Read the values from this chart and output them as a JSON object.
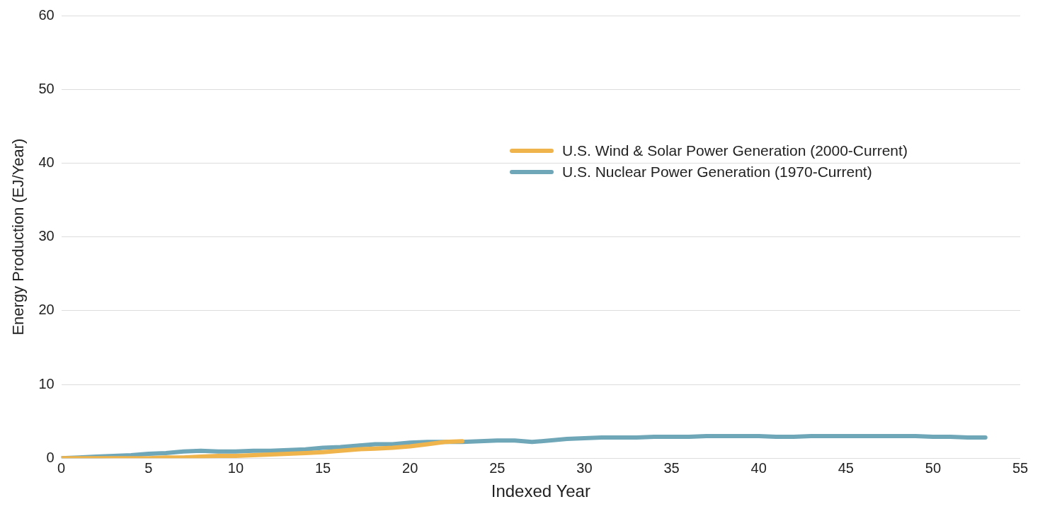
{
  "chart_data": {
    "type": "line",
    "xlabel": "Indexed Year",
    "ylabel": "Energy Production (EJ/Year)",
    "xlim": [
      0,
      55
    ],
    "xticks": [
      0,
      5,
      10,
      15,
      20,
      25,
      30,
      35,
      40,
      45,
      50,
      55
    ],
    "ylim": [
      0,
      60
    ],
    "yticks": [
      0,
      10,
      20,
      30,
      40,
      50,
      60
    ],
    "grid": "y",
    "legend": "right",
    "marker": "none",
    "line_style": "solid",
    "series": [
      {
        "name": "U.S. Wind & Solar Power Generation (2000-Current)",
        "color": "#f0b44c",
        "x": [
          0,
          1,
          2,
          3,
          4,
          5,
          6,
          7,
          8,
          9,
          10,
          11,
          12,
          13,
          14,
          15,
          16,
          17,
          18,
          19,
          20,
          21,
          22,
          23
        ],
        "values": [
          0,
          0,
          0,
          0,
          0,
          0,
          0.1,
          0.1,
          0.2,
          0.3,
          0.3,
          0.4,
          0.5,
          0.6,
          0.7,
          0.8,
          1.0,
          1.2,
          1.3,
          1.4,
          1.6,
          1.9,
          2.2,
          2.3
        ]
      },
      {
        "name": "U.S. Nuclear Power Generation (1970-Current)",
        "color": "#6fa7b8",
        "x": [
          0,
          1,
          2,
          3,
          4,
          5,
          6,
          7,
          8,
          9,
          10,
          11,
          12,
          13,
          14,
          15,
          16,
          17,
          18,
          19,
          20,
          21,
          22,
          23,
          24,
          25,
          26,
          27,
          28,
          29,
          30,
          31,
          32,
          33,
          34,
          35,
          36,
          37,
          38,
          39,
          40,
          41,
          42,
          43,
          44,
          45,
          46,
          47,
          48,
          49,
          50,
          51,
          52,
          53
        ],
        "values": [
          0,
          0.1,
          0.2,
          0.3,
          0.4,
          0.6,
          0.7,
          0.9,
          1.0,
          0.9,
          0.9,
          1.0,
          1.0,
          1.1,
          1.2,
          1.4,
          1.5,
          1.7,
          1.9,
          1.9,
          2.1,
          2.2,
          2.2,
          2.2,
          2.3,
          2.4,
          2.4,
          2.2,
          2.4,
          2.6,
          2.7,
          2.8,
          2.8,
          2.8,
          2.9,
          2.9,
          2.9,
          3.0,
          3.0,
          3.0,
          3.0,
          2.9,
          2.9,
          3.0,
          3.0,
          3.0,
          3.0,
          3.0,
          3.0,
          3.0,
          2.9,
          2.9,
          2.8,
          2.8
        ]
      }
    ]
  }
}
